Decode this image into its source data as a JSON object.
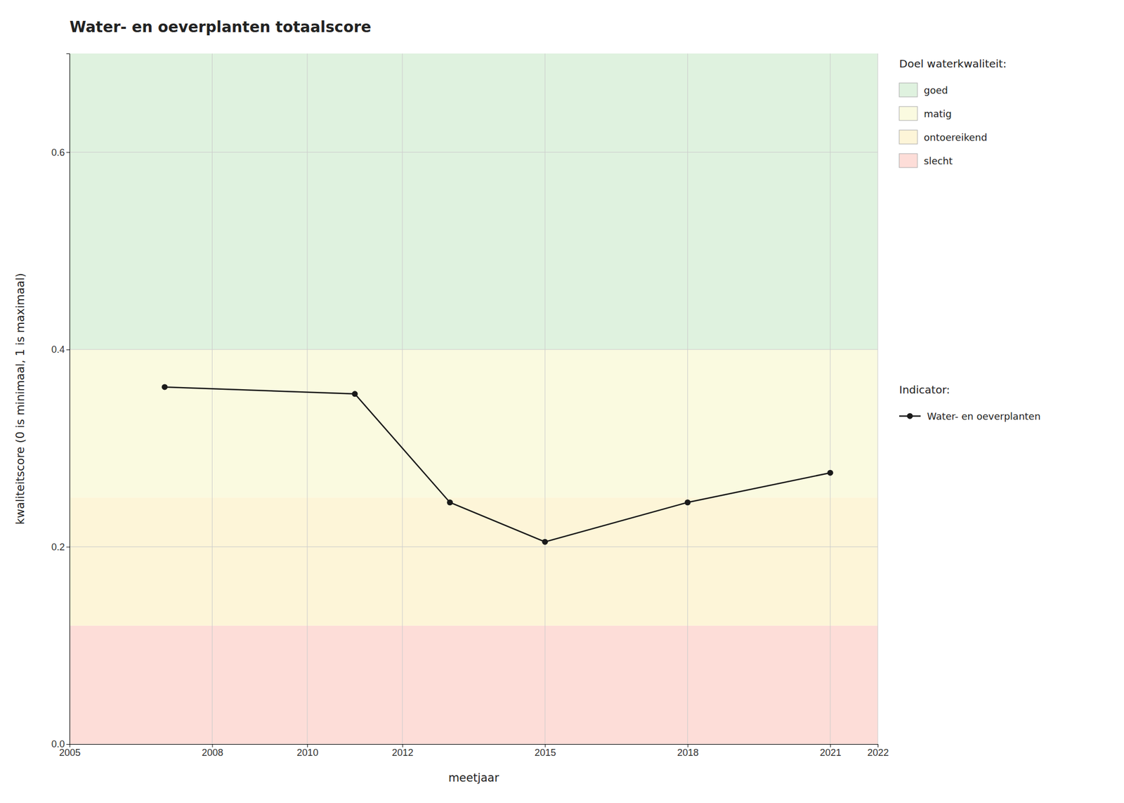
{
  "chart_data": {
    "type": "line",
    "title": "Water- en oeverplanten totaalscore",
    "x_label": "meetjaar",
    "y_label": "kwaliteitscore (0 is minimaal, 1 is maximaal)",
    "x": [
      2007,
      2011,
      2013,
      2015,
      2018,
      2021
    ],
    "series": [
      {
        "name": "Water- en oeverplanten",
        "color": "#1a1a1a",
        "marker": "circle",
        "line_style": "solid",
        "values": [
          0.362,
          0.355,
          0.245,
          0.205,
          0.245,
          0.275
        ]
      }
    ],
    "xlim": [
      2005,
      2022
    ],
    "ylim": [
      0,
      0.7
    ],
    "xticks": [
      2005,
      2008,
      2010,
      2012,
      2015,
      2018,
      2021,
      2022
    ],
    "yticks": [
      {
        "value": 0.0,
        "label": "0.0"
      },
      0.2,
      0.4,
      0.6
    ],
    "zones": [
      {
        "name": "goed",
        "ymin": 0.4,
        "ymax": 0.7,
        "color": "#dff2df"
      },
      {
        "name": "matig",
        "ymin": 0.25,
        "ymax": 0.4,
        "color": "#fafae0"
      },
      {
        "name": "ontoereikend",
        "ymin": 0.12,
        "ymax": 0.25,
        "color": "#fdf5d8"
      },
      {
        "name": "slecht",
        "ymin": 0.0,
        "ymax": 0.12,
        "color": "#fdddd8"
      }
    ],
    "legend_title_zones": "Doel waterkwaliteit:",
    "legend_title_series": "Indicator:",
    "grid": true,
    "legend": "right"
  }
}
